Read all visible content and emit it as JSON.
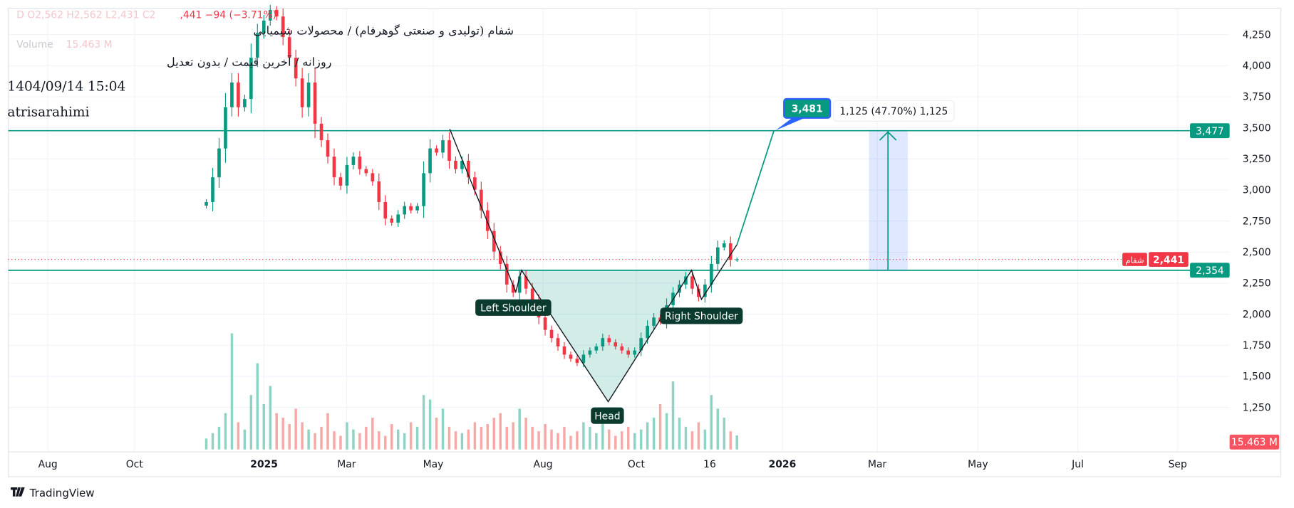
{
  "header": {
    "title": "شفام (تولیدی و صنعتی گوهرفام) / محصولات شیمیایی",
    "ohlc_ghost": "D O2,562 H2,562 L2,431 C2",
    "change": ",441 −94 (−3.71%)",
    "volume_label": "Volume",
    "volume_value": "15.463 M",
    "subtitle": "روزانه / آخرین قیمت / بدون تعدیل",
    "datetime": "1404/09/14 15:04",
    "author": "atrisarahimi"
  },
  "footer": {
    "brand": "TradingView"
  },
  "colors": {
    "up": "#089981",
    "down": "#f23645",
    "line": "#089981",
    "label_dark": "#0b3b2e",
    "measure": "#2962ff"
  },
  "chart_data": {
    "type": "candlestick",
    "y_ticks": [
      "4,250",
      "4,000",
      "3,750",
      "3,500",
      "3,250",
      "3,000",
      "2,750",
      "2,500",
      "2,250",
      "2,000",
      "1,750",
      "1,500",
      "1,250"
    ],
    "y_tick_values": [
      4250,
      4000,
      3750,
      3500,
      3250,
      3000,
      2750,
      2500,
      2250,
      2000,
      1750,
      1500,
      1250
    ],
    "x_ticks": [
      {
        "label": "Aug",
        "bold": false
      },
      {
        "label": "Oct",
        "bold": false
      },
      {
        "label": "2025",
        "bold": true
      },
      {
        "label": "Mar",
        "bold": false
      },
      {
        "label": "May",
        "bold": false
      },
      {
        "label": "Aug",
        "bold": false
      },
      {
        "label": "Oct",
        "bold": false
      },
      {
        "label": "16",
        "bold": false
      },
      {
        "label": "2026",
        "bold": true
      },
      {
        "label": "Mar",
        "bold": false
      },
      {
        "label": "May",
        "bold": false
      },
      {
        "label": "Jul",
        "bold": false
      },
      {
        "label": "Sep",
        "bold": false
      }
    ],
    "grid": true,
    "closes": [
      2903,
      3102,
      3334,
      3666,
      3865,
      3666,
      3732,
      4064,
      4263,
      4363,
      4449,
      4396,
      4230,
      4064,
      3898,
      3666,
      3865,
      3533,
      3400,
      3268,
      3102,
      3035,
      3201,
      3268,
      3168,
      3135,
      3069,
      2903,
      2770,
      2737,
      2803,
      2870,
      2836,
      2870,
      3135,
      3334,
      3301,
      3400,
      3235,
      3168,
      3235,
      3102,
      3002,
      2836,
      2670,
      2504,
      2405,
      2239,
      2173,
      2305,
      2206,
      2106,
      1974,
      1874,
      1808,
      1741,
      1675,
      1642,
      1608,
      1675,
      1708,
      1741,
      1808,
      1774,
      1741,
      1708,
      1675,
      1708,
      1808,
      1907,
      1974,
      1940,
      2073,
      2173,
      2239,
      2305,
      2206,
      2139,
      2239,
      2405,
      2538,
      2571,
      2438,
      2441
    ],
    "volumes_m": [
      12,
      18,
      25,
      40,
      128,
      30,
      22,
      60,
      95,
      50,
      70,
      40,
      35,
      28,
      45,
      30,
      22,
      18,
      25,
      40,
      20,
      15,
      30,
      22,
      18,
      25,
      35,
      20,
      15,
      28,
      22,
      18,
      30,
      25,
      60,
      55,
      35,
      45,
      25,
      20,
      18,
      22,
      30,
      25,
      28,
      35,
      40,
      25,
      30,
      45,
      35,
      25,
      20,
      28,
      22,
      18,
      25,
      15,
      20,
      30,
      25,
      18,
      40,
      22,
      15,
      20,
      25,
      18,
      22,
      30,
      35,
      50,
      40,
      75,
      35,
      25,
      20,
      30,
      22,
      60,
      45,
      35,
      20,
      15.463
    ],
    "last_price": "2,441",
    "last_price_value": 2441,
    "symbol_tag": "شفام",
    "last_volume": "15.463 M",
    "horizontal_lines": [
      {
        "label": "3,477",
        "value": 3477
      },
      {
        "label": "2,354",
        "value": 2354
      }
    ],
    "pattern": {
      "start_price": 3490,
      "left_shoulder_price": 2180,
      "neckline_price": 2354,
      "head_price": 1296,
      "right_shoulder_price": 2120,
      "breakout_price": 2560,
      "target_price": 3481,
      "labels": {
        "left": "Left Shoulder",
        "head": "Head",
        "right": "Right Shoulder"
      }
    },
    "target_label": "3,481",
    "measure_label": "1,125 (47.70%) 1,125"
  }
}
